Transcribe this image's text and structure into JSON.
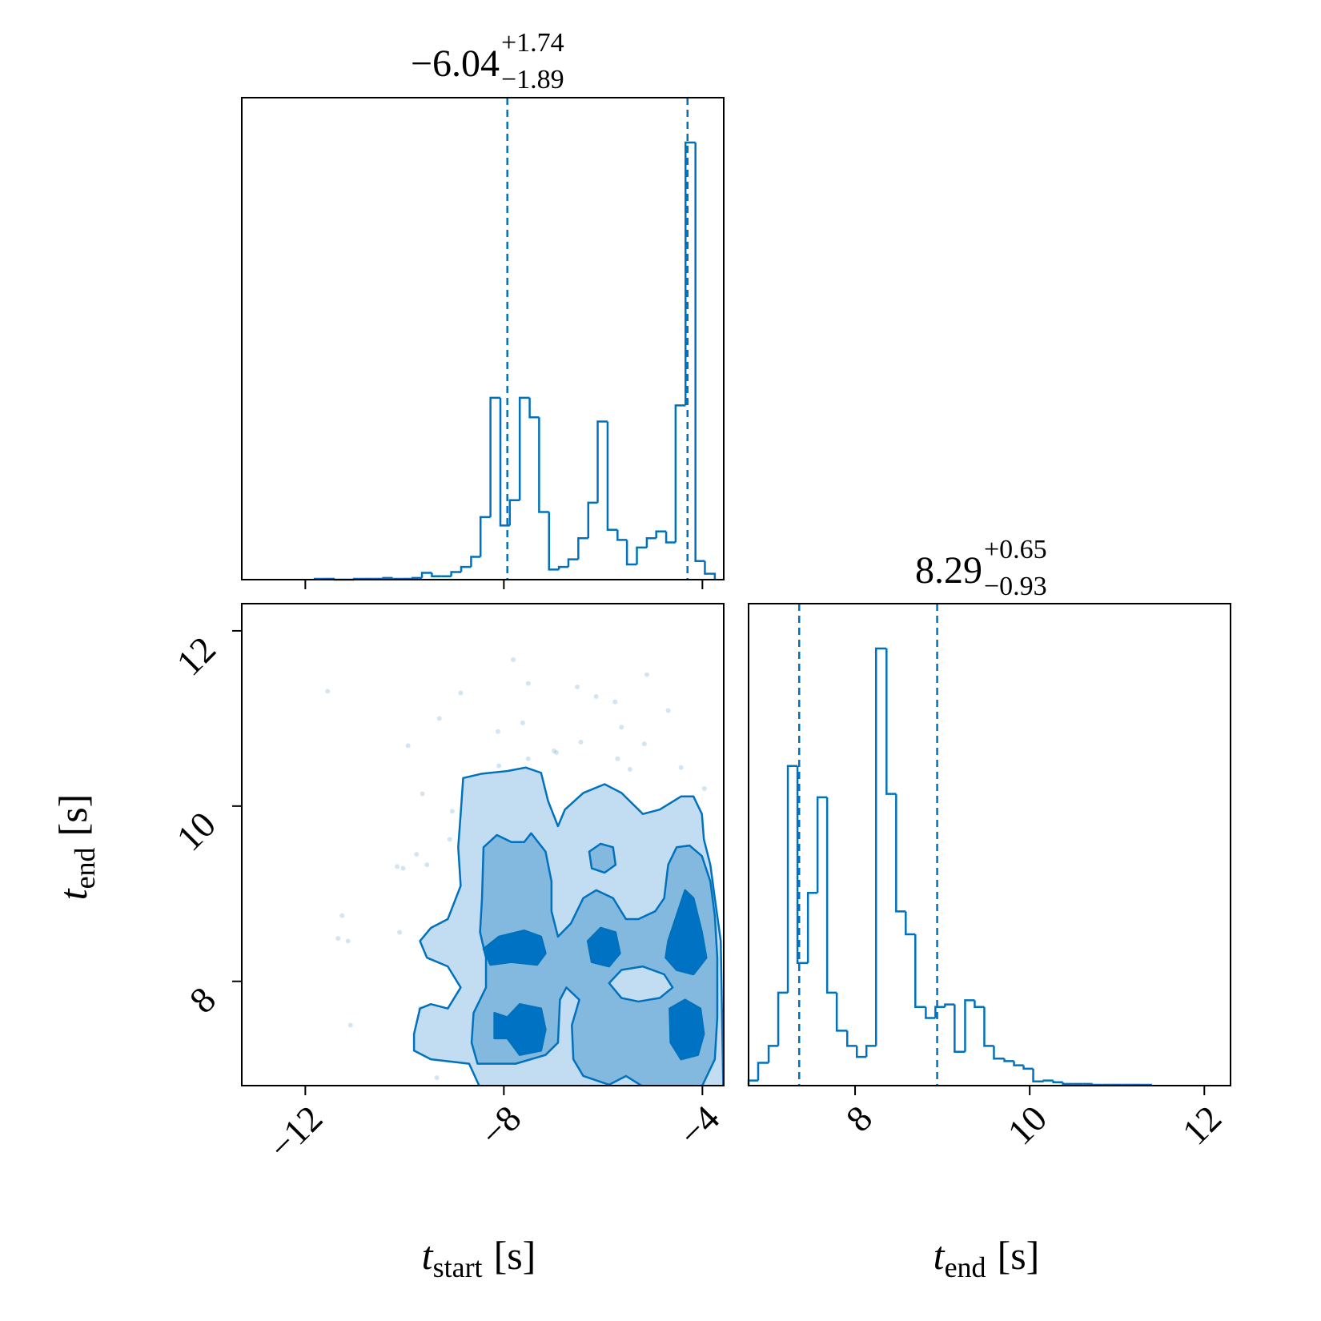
{
  "chart_data": [
    {
      "type": "histogram",
      "title": "−6.04",
      "title_sup": "+1.74",
      "title_sub": "−1.89",
      "color": "#0072bd",
      "bins": [
        -11.81,
        -11.61,
        -11.41,
        -11.22,
        -11.02,
        -10.82,
        -10.63,
        -10.43,
        -10.24,
        -10.04,
        -9.84,
        -9.65,
        -9.45,
        -9.25,
        -9.06,
        -8.86,
        -8.66,
        -8.47,
        -8.27,
        -8.07,
        -7.88,
        -7.68,
        -7.48,
        -7.29,
        -7.09,
        -6.89,
        -6.7,
        -6.5,
        -6.3,
        -6.11,
        -5.91,
        -5.71,
        -5.52,
        -5.32,
        -5.12,
        -4.93,
        -4.73,
        -4.54,
        -4.34,
        -4.14,
        -3.95,
        -3.75
      ],
      "values": [
        1,
        1,
        0,
        0,
        1,
        1,
        1,
        2,
        1,
        1,
        2,
        8,
        4,
        4,
        9,
        15,
        27,
        74,
        215,
        64,
        94,
        215,
        192,
        80,
        12,
        15,
        24,
        49,
        91,
        187,
        59,
        47,
        18,
        38,
        49,
        57,
        44,
        206,
        517,
        22,
        7
      ],
      "quantiles": [
        -7.93,
        -4.3
      ],
      "xlim": [
        -13.28,
        -3.57
      ],
      "ylim": [
        0,
        570
      ],
      "xticks": [
        {
          "value": -12,
          "label": "−12"
        },
        {
          "value": -8,
          "label": "−8"
        },
        {
          "value": -4,
          "label": "−4"
        }
      ],
      "show_xtick_labels": false
    },
    {
      "type": "contour",
      "color": "#0072bd",
      "xlabel": {
        "main": "t",
        "sub": "start",
        "unit": "[s]"
      },
      "ylabel": {
        "main": "t",
        "sub": "end",
        "unit": "[s]"
      },
      "xlim": [
        -13.28,
        -3.57
      ],
      "ylim": [
        6.81,
        12.31
      ],
      "xticks": [
        {
          "value": -12,
          "label": "−12"
        },
        {
          "value": -8,
          "label": "−8"
        },
        {
          "value": -4,
          "label": "−4"
        }
      ],
      "yticks": [
        8,
        10,
        12
      ],
      "contours": [
        {
          "color": "#c2dcf1",
          "x": [
            -8.82,
            -8.44,
            -7.93,
            -7.56,
            -7.25,
            -7.11,
            -6.91,
            -6.77,
            -6.4,
            -5.97,
            -5.63,
            -5.2,
            -4.86,
            -4.43,
            -4.18,
            -4.01,
            -3.97,
            -3.84,
            -3.75,
            -3.63,
            -3.58,
            -8.49,
            -8.7,
            -9.47,
            -9.81,
            -9.81,
            -9.69,
            -9.47,
            -9.13,
            -8.87,
            -9.13,
            -9.55,
            -9.69,
            -9.47,
            -9.13,
            -8.87,
            -8.92,
            -8.87
          ],
          "y": [
            10.32,
            10.37,
            10.4,
            10.44,
            10.38,
            10.06,
            9.77,
            9.96,
            10.15,
            10.25,
            10.15,
            9.91,
            9.96,
            10.11,
            10.11,
            9.91,
            9.62,
            9.33,
            8.95,
            8.46,
            6.8,
            6.8,
            7.06,
            7.11,
            7.21,
            7.4,
            7.69,
            7.74,
            7.69,
            7.93,
            8.17,
            8.27,
            8.46,
            8.61,
            8.71,
            9.09,
            9.53,
            9.91
          ]
        },
        {
          "color": "#83b8df",
          "x": [
            -8.41,
            -8.14,
            -7.85,
            -7.59,
            -7.45,
            -7.16,
            -7.04,
            -7.04,
            -6.91,
            -6.65,
            -6.4,
            -6.14,
            -5.8,
            -5.54,
            -5.29,
            -4.95,
            -4.77,
            -4.69,
            -4.52,
            -4.26,
            -4.01,
            -3.84,
            -3.75,
            -3.7,
            -3.7,
            -3.75,
            -4.01,
            -5.2,
            -5.54,
            -5.88,
            -6.4,
            -6.6,
            -6.63,
            -6.48,
            -6.74,
            -6.87,
            -6.91,
            -7.16,
            -7.76,
            -8.53,
            -8.65,
            -8.61,
            -8.36,
            -8.36,
            -8.48,
            -8.44
          ],
          "y": [
            9.53,
            9.67,
            9.59,
            9.59,
            9.69,
            9.48,
            9.14,
            8.8,
            8.51,
            8.66,
            8.95,
            9.04,
            8.95,
            8.71,
            8.71,
            8.8,
            8.95,
            9.33,
            9.53,
            9.55,
            9.43,
            9.14,
            8.75,
            8.27,
            7.59,
            7.11,
            6.8,
            6.8,
            6.92,
            6.82,
            6.92,
            7.11,
            7.5,
            7.79,
            7.93,
            7.79,
            7.3,
            7.16,
            7.06,
            7.06,
            7.3,
            7.64,
            7.93,
            8.27,
            8.56,
            8.95
          ]
        },
        {
          "color": "#c2dcf1",
          "x": [
            -5.88,
            -5.63,
            -5.2,
            -4.77,
            -4.6,
            -4.86,
            -5.29,
            -5.63
          ],
          "y": [
            7.98,
            8.13,
            8.17,
            8.08,
            7.93,
            7.81,
            7.77,
            7.81
          ]
        },
        {
          "color": "#83b8df",
          "x": [
            -6.28,
            -6.05,
            -5.8,
            -5.75,
            -5.97,
            -6.23
          ],
          "y": [
            9.48,
            9.57,
            9.53,
            9.33,
            9.24,
            9.29
          ]
        },
        {
          "color": "#0072c3",
          "x": [
            -8.41,
            -8.1,
            -7.59,
            -7.25,
            -7.16,
            -7.33,
            -7.85,
            -8.27
          ],
          "y": [
            8.37,
            8.51,
            8.58,
            8.51,
            8.32,
            8.19,
            8.22,
            8.19
          ]
        },
        {
          "color": "#0072c3",
          "x": [
            -8.19,
            -7.93,
            -7.68,
            -7.25,
            -7.16,
            -7.25,
            -7.68,
            -7.93,
            -8.19
          ],
          "y": [
            7.64,
            7.59,
            7.74,
            7.69,
            7.45,
            7.21,
            7.16,
            7.35,
            7.35
          ]
        },
        {
          "color": "#0072c3",
          "x": [
            -6.31,
            -6.05,
            -5.75,
            -5.66,
            -5.88,
            -6.23
          ],
          "y": [
            8.46,
            8.61,
            8.56,
            8.32,
            8.17,
            8.22
          ]
        },
        {
          "color": "#0072c3",
          "x": [
            -4.69,
            -4.52,
            -4.35,
            -4.18,
            -4.01,
            -3.92,
            -4.18,
            -4.52,
            -4.74
          ],
          "y": [
            8.46,
            8.75,
            9.04,
            8.95,
            8.56,
            8.27,
            8.08,
            8.13,
            8.27
          ]
        },
        {
          "color": "#0072c3",
          "x": [
            -4.66,
            -4.35,
            -4.04,
            -3.97,
            -4.09,
            -4.43,
            -4.64
          ],
          "y": [
            7.69,
            7.79,
            7.69,
            7.4,
            7.16,
            7.11,
            7.3
          ]
        }
      ],
      "points": {
        "x": [
          -11.55,
          -8.87,
          -7.81,
          -7.51,
          -6.52,
          -6.14,
          -5.76,
          -5.12,
          -4.69,
          -9.3,
          -7.62,
          -8.12,
          -9.93,
          -6.94,
          -6.45,
          -5.63,
          -5.17,
          -8.1,
          -7.51,
          -6.99,
          -9.64,
          -9.04,
          -9.09,
          -9.76,
          -10.03,
          -9.55,
          -10.15,
          -11.26,
          -11.34,
          -11.14,
          -10.1,
          -11.09,
          -9.69,
          -9.35,
          -5.71,
          -5.46,
          -4.43,
          -3.96
        ],
        "y": [
          11.31,
          11.29,
          11.67,
          11.4,
          11.36,
          11.25,
          11.19,
          11.5,
          11.09,
          11.0,
          10.95,
          10.85,
          10.69,
          10.61,
          10.73,
          10.9,
          10.71,
          10.46,
          10.54,
          10.63,
          10.14,
          9.94,
          9.62,
          9.45,
          9.29,
          9.33,
          9.31,
          8.75,
          8.49,
          8.46,
          8.56,
          7.5,
          7.69,
          6.9,
          10.54,
          10.42,
          10.44,
          10.2
        ]
      }
    },
    {
      "type": "histogram",
      "title": "8.29",
      "title_sup": "+0.65",
      "title_sub": "−0.93",
      "color": "#0072bd",
      "xlabel": {
        "main": "t",
        "sub": "end",
        "unit": "[s]"
      },
      "bins": [
        6.78,
        6.89,
        7.01,
        7.12,
        7.23,
        7.34,
        7.46,
        7.57,
        7.68,
        7.79,
        7.91,
        8.02,
        8.13,
        8.24,
        8.36,
        8.47,
        8.58,
        8.69,
        8.81,
        8.92,
        9.03,
        9.14,
        9.26,
        9.37,
        9.48,
        9.59,
        9.71,
        9.82,
        9.93,
        10.04,
        10.16,
        10.27,
        10.38,
        10.49,
        10.61,
        10.72,
        10.83,
        10.94,
        11.06,
        11.17,
        11.28,
        11.39
      ],
      "values": [
        6,
        27,
        47,
        110,
        378,
        145,
        228,
        341,
        110,
        65,
        47,
        34,
        47,
        517,
        345,
        206,
        179,
        93,
        80,
        93,
        96,
        40,
        101,
        93,
        47,
        32,
        29,
        24,
        20,
        5,
        6,
        4,
        2,
        2,
        2,
        1,
        1,
        1,
        1,
        1,
        1
      ],
      "quantiles": [
        7.36,
        8.94
      ],
      "xlim": [
        6.78,
        12.3
      ],
      "ylim": [
        0,
        570
      ],
      "xticks": [
        8,
        10,
        12
      ],
      "show_xtick_labels": true
    }
  ]
}
